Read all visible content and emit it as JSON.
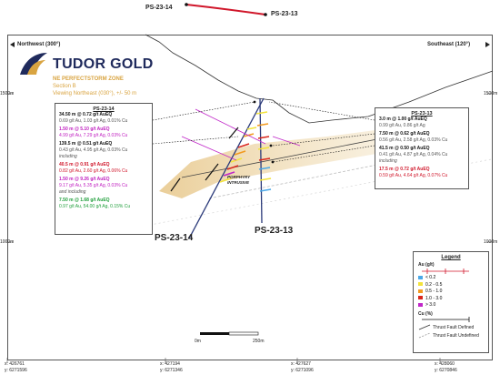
{
  "top_holes": {
    "left": "PS-23-14",
    "right": "PS-23-13"
  },
  "direction": {
    "northwest": "Northwest (300°)",
    "southeast": "Southeast (120°)"
  },
  "logo": {
    "wordmark": "TUDOR GOLD"
  },
  "title": {
    "zone": "NE PERFECTSTORM ZONE",
    "section": "Section B",
    "view": "Viewing Northeast (030°), +/- 50 m"
  },
  "elevation": {
    "upper": "1500m",
    "lower": "1000m"
  },
  "box_ps2314": {
    "title": "PS-23-14",
    "lines": [
      {
        "text": "34.50 m @ 0.72 g/t AuEQ",
        "style": "black b"
      },
      {
        "text": "0.69 g/t Au, 1.03 g/t Ag, 0.01% Cu",
        "style": "grey"
      },
      {
        "text": "1.50 m @ 5.10 g/t AuEQ",
        "style": "mag b"
      },
      {
        "text": "4.99 g/t Au, 7.29 g/t Ag, 0.03% Cu",
        "style": "mag"
      },
      {
        "text": "139.5 m @ 0.51 g/t AuEQ",
        "style": "black b"
      },
      {
        "text": "0.43 g/t Au, 4.95 g/t Ag, 0.03% Cu",
        "style": "grey"
      },
      {
        "text": "including",
        "style": "grey ital"
      },
      {
        "text": "40.5 m @ 0.91 g/t AuEQ",
        "style": "red b"
      },
      {
        "text": "0.82 g/t Au, 2.60 g/t Ag, 0.06% Cu",
        "style": "red"
      },
      {
        "text": "1.50 m @ 9.26 g/t AuEQ",
        "style": "mag b"
      },
      {
        "text": "9.17 g/t Au, 5.35 g/t Ag, 0.03% Cu",
        "style": "mag"
      },
      {
        "text": "and including",
        "style": "grey ital"
      },
      {
        "text": "7.50 m @ 1.68 g/t AuEQ",
        "style": "grn b"
      },
      {
        "text": "0.97 g/t Au, 54.00 g/t Ag, 0.15% Cu",
        "style": "grn"
      }
    ]
  },
  "box_ps2313": {
    "title": "PS-23-13",
    "lines": [
      {
        "text": "3.0 m @ 1.00 g/t AuEQ",
        "style": "black b"
      },
      {
        "text": "0.99 g/t Au, 0.86 g/t Ag",
        "style": "grey"
      },
      {
        "text": "7.50 m @ 0.62 g/t AuEQ",
        "style": "black b"
      },
      {
        "text": "0.56 g/t Au, 2.58 g/t Ag, 0.03% Cu",
        "style": "grey"
      },
      {
        "text": "41.5 m @ 0.50 g/t AuEQ",
        "style": "black b"
      },
      {
        "text": "0.41 g/t Au, 4.87 g/t Ag, 0.04% Cu",
        "style": "grey"
      },
      {
        "text": "including",
        "style": "grey ital"
      },
      {
        "text": "17.5 m @ 0.72 g/t AuEQ",
        "style": "red b"
      },
      {
        "text": "0.59 g/t Au, 4.64 g/t Ag, 0.07% Cu",
        "style": "red"
      }
    ]
  },
  "intrusive_label": "PORPHYRY INTRUSIVE",
  "hole_labels": {
    "left": "PS-23-14",
    "right": "PS-23-13"
  },
  "scale": {
    "start": "0m",
    "end": "250m"
  },
  "legend": {
    "title": "Legend",
    "au_heading": "Au (g/t)",
    "au_items": [
      {
        "label": "< 0.2",
        "color": "#4aa8e8"
      },
      {
        "label": "0.2 - 0.5",
        "color": "#f3e33b"
      },
      {
        "label": "0.5 - 1.0",
        "color": "#f29a1f"
      },
      {
        "label": "1.0 - 3.0",
        "color": "#d9261c"
      },
      {
        "label": "> 3.0",
        "color": "#c026c8"
      }
    ],
    "cu_heading": "Cu (%)",
    "fault_defined": "Thrust Fault Defined",
    "fault_undefined": "Thrust Fault Undefined"
  },
  "coordinates": [
    {
      "x": "x: 426761",
      "y": "y: 6271596"
    },
    {
      "x": "x: 427194",
      "y": "y: 6271346"
    },
    {
      "x": "x: 427627",
      "y": "y: 6271096"
    },
    {
      "x": "x: 428060",
      "y": "y: 6270846"
    }
  ],
  "colors": {
    "trace": "#d0162a",
    "gold": "#d9a441",
    "logo_blue": "#1f2a5c",
    "zone_band": "#e8c98e"
  }
}
